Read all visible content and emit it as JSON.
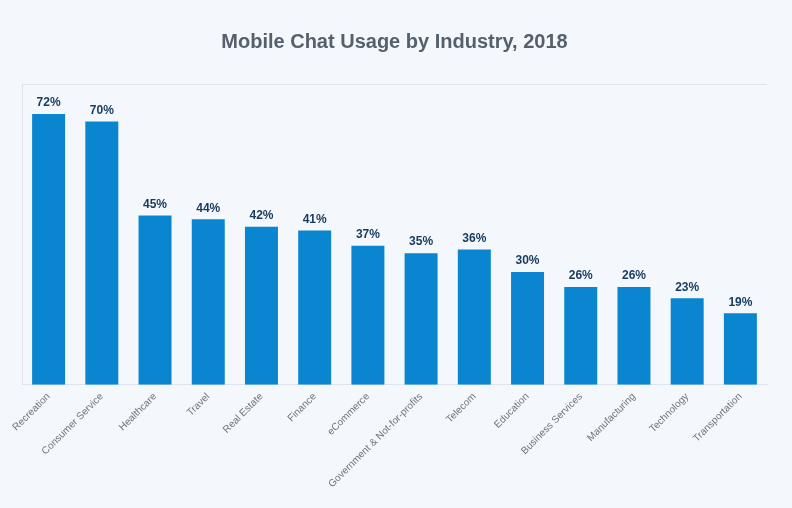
{
  "chart_data": {
    "type": "bar",
    "title": "Mobile Chat Usage by Industry, 2018",
    "categories": [
      "Recreation",
      "Consumer Service",
      "Healthcare",
      "Travel",
      "Real Estate",
      "Finance",
      "eCommerce",
      "Government & Not-for-profits",
      "Telecom",
      "Education",
      "Business Services",
      "Manufacturing",
      "Technology",
      "Transportation"
    ],
    "values": [
      72,
      70,
      45,
      44,
      42,
      41,
      37,
      35,
      36,
      30,
      26,
      26,
      23,
      19
    ],
    "value_labels": [
      "72%",
      "70%",
      "45%",
      "44%",
      "42%",
      "41%",
      "37%",
      "35%",
      "36%",
      "30%",
      "26%",
      "26%",
      "23%",
      "19%"
    ],
    "color": "#0a86d0",
    "ylim": [
      0,
      80
    ],
    "grid": false,
    "data_labels": true,
    "tick_labels": "x"
  }
}
